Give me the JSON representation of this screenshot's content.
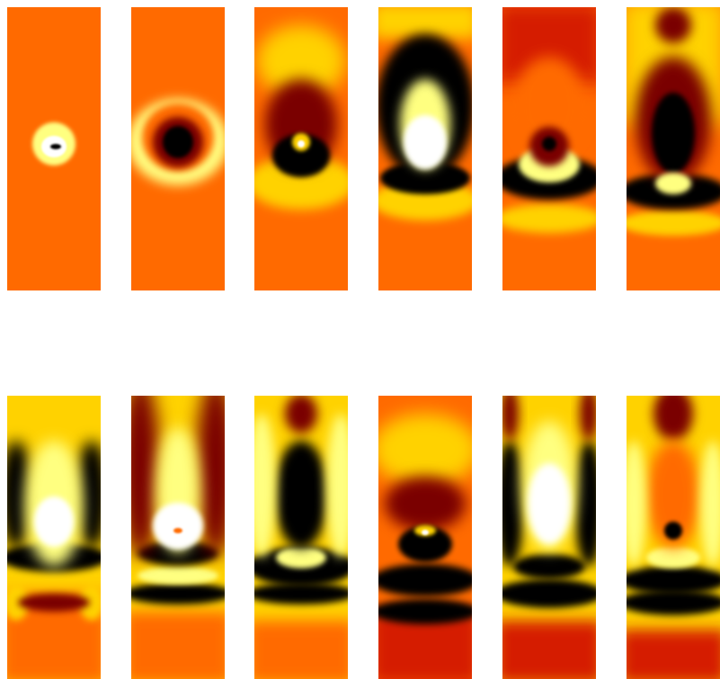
{
  "figure": {
    "rows": 2,
    "columns": 6,
    "colormap": [
      "#000000",
      "#7a0000",
      "#d51a00",
      "#ff6a00",
      "#ffd200",
      "#ffff80",
      "#ffffff"
    ],
    "background_color": "#ff6a00",
    "panels": [
      {
        "row": 1,
        "col": 1,
        "frame": 1
      },
      {
        "row": 1,
        "col": 2,
        "frame": 2
      },
      {
        "row": 1,
        "col": 3,
        "frame": 3
      },
      {
        "row": 1,
        "col": 4,
        "frame": 4
      },
      {
        "row": 1,
        "col": 5,
        "frame": 5
      },
      {
        "row": 1,
        "col": 6,
        "frame": 6
      },
      {
        "row": 2,
        "col": 1,
        "frame": 7
      },
      {
        "row": 2,
        "col": 2,
        "frame": 8
      },
      {
        "row": 2,
        "col": 3,
        "frame": 9
      },
      {
        "row": 2,
        "col": 4,
        "frame": 10
      },
      {
        "row": 2,
        "col": 5,
        "frame": 11
      },
      {
        "row": 2,
        "col": 6,
        "frame": 12
      }
    ]
  }
}
